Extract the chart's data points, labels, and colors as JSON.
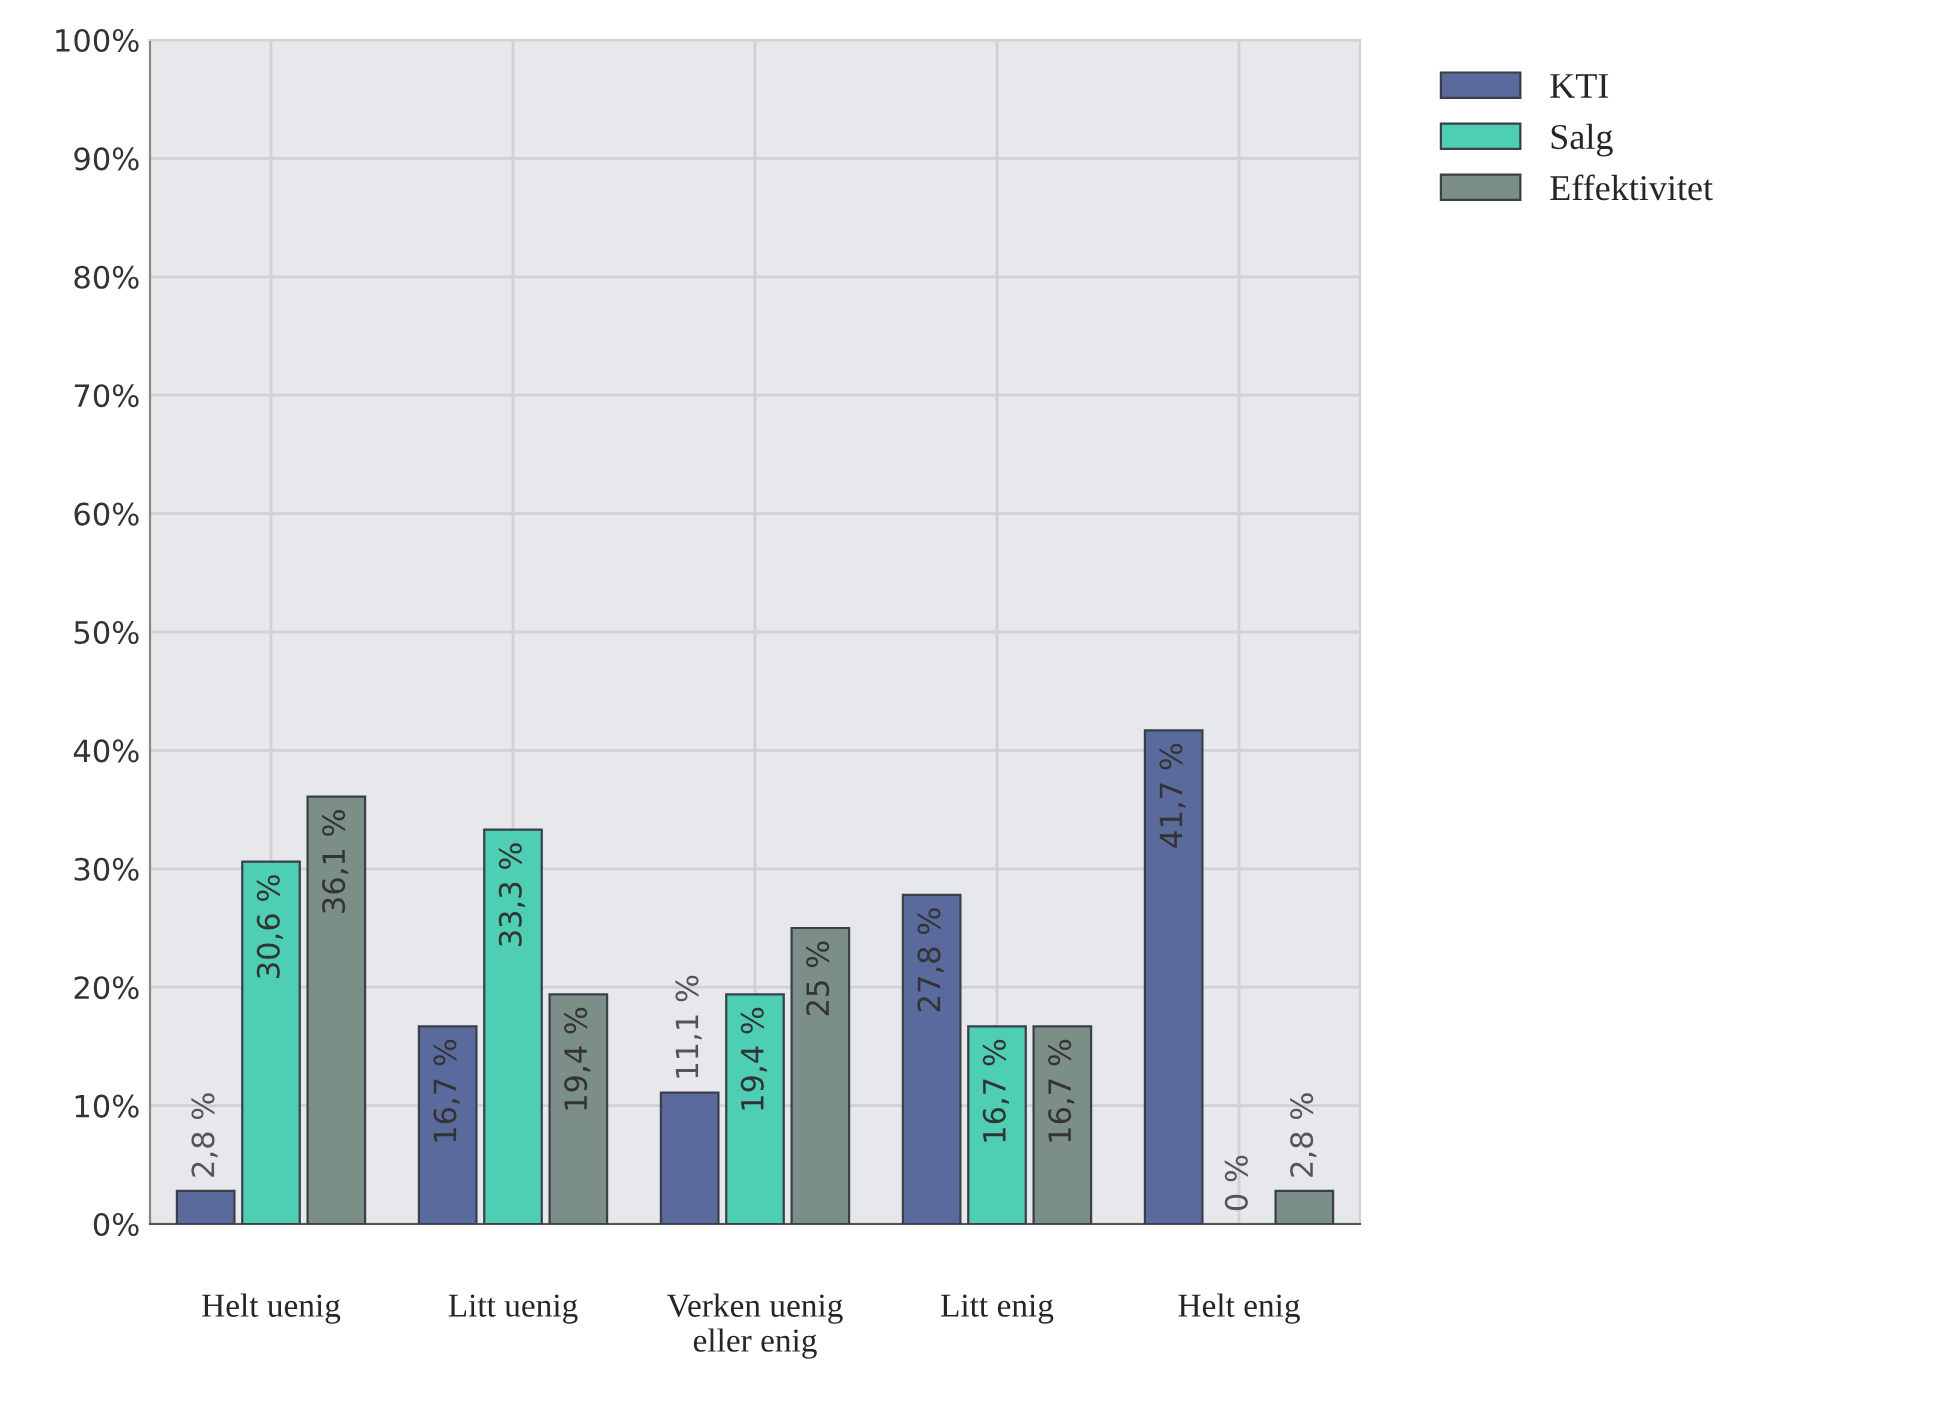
{
  "chart_data": {
    "type": "bar",
    "categories": [
      "Helt uenig",
      "Litt uenig",
      "Verken uenig\neller enig",
      "Litt enig",
      "Helt enig"
    ],
    "series": [
      {
        "name": "KTI",
        "color": "#5b6a9c",
        "values": [
          2.8,
          16.7,
          11.1,
          27.8,
          41.7
        ],
        "value_labels": [
          "2,8 %",
          "16,7 %",
          "11,1 %",
          "27,8 %",
          "41,7 %"
        ]
      },
      {
        "name": "Salg",
        "color": "#4ecfb3",
        "values": [
          30.6,
          33.3,
          19.4,
          16.7,
          0
        ],
        "value_labels": [
          "30,6 %",
          "33,3 %",
          "19,4 %",
          "16,7 %",
          "0 %"
        ]
      },
      {
        "name": "Effektivitet",
        "color": "#7c8e88",
        "values": [
          36.1,
          19.4,
          25,
          16.7,
          2.8
        ],
        "value_labels": [
          "36,1 %",
          "19,4 %",
          "25 %",
          "16,7 %",
          "2,8 %"
        ]
      }
    ],
    "ylim": [
      0,
      100
    ],
    "yticks": [
      {
        "value": 0,
        "label": "0%"
      },
      {
        "value": 10,
        "label": "10%"
      },
      {
        "value": 20,
        "label": "20%"
      },
      {
        "value": 30,
        "label": "30%"
      },
      {
        "value": 40,
        "label": "40%"
      },
      {
        "value": 50,
        "label": "50%"
      },
      {
        "value": 60,
        "label": "60%"
      },
      {
        "value": 70,
        "label": "70%"
      },
      {
        "value": 80,
        "label": "80%"
      },
      {
        "value": 90,
        "label": "90%"
      },
      {
        "value": 100,
        "label": "100%"
      }
    ],
    "grid": true,
    "legend": "top right"
  }
}
